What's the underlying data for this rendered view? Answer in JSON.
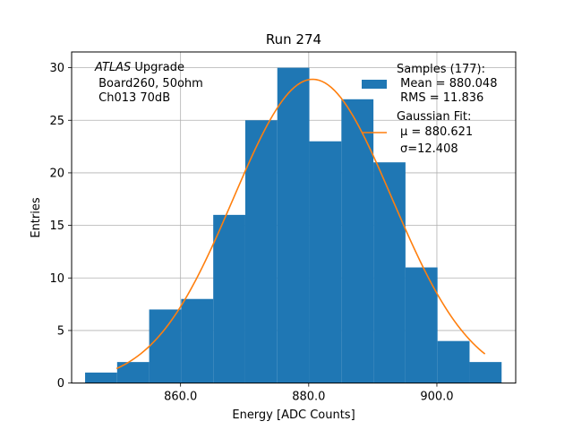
{
  "chart_data": {
    "type": "bar",
    "title": "Run 274",
    "xlabel": "Energy [ADC Counts]",
    "ylabel": "Entries",
    "xlim": [
      843.0,
      912.3
    ],
    "ylim": [
      0,
      31.5
    ],
    "grid": true,
    "xticks": [
      860.0,
      880.0,
      900.0
    ],
    "xtick_labels": [
      "860.0",
      "880.0",
      "900.0"
    ],
    "yticks": [
      0,
      5,
      10,
      15,
      20,
      25,
      30
    ],
    "ytick_labels": [
      "0",
      "5",
      "10",
      "15",
      "20",
      "25",
      "30"
    ],
    "bar_color": "#1f77b4",
    "fit_color": "#ff7f0e",
    "histogram": {
      "bin_edges": [
        845.1,
        850.1,
        855.1,
        860.1,
        865.1,
        870.1,
        875.1,
        880.1,
        885.1,
        890.1,
        895.1,
        900.1,
        905.1,
        910.1
      ],
      "counts": [
        1,
        2,
        7,
        8,
        16,
        25,
        30,
        23,
        27,
        21,
        11,
        4,
        2
      ]
    },
    "fit_curve": {
      "amplitude": 28.9,
      "mu": 880.621,
      "sigma": 12.408,
      "x_range": [
        850.0,
        907.5
      ]
    },
    "annotation_lines": [
      "ATLAS Upgrade",
      " Board260, 50ohm",
      " Ch013 70dB"
    ],
    "legend": {
      "placement": "top-right",
      "samples_lines": [
        "Samples (177):",
        " Mean = 880.048",
        " RMS = 11.836"
      ],
      "fit_lines": [
        "Gaussian Fit:",
        "μ = 880.621",
        "σ=12.408"
      ]
    }
  }
}
